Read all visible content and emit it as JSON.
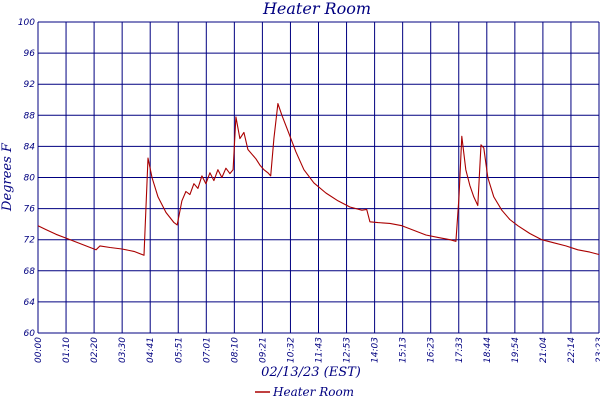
{
  "chart_data": {
    "type": "line",
    "title": "Heater Room",
    "xlabel": "02/13/23 (EST)",
    "ylabel": "Degrees F",
    "ylim": [
      60,
      100
    ],
    "yticks": [
      60,
      64,
      68,
      72,
      76,
      80,
      84,
      88,
      92,
      96,
      100
    ],
    "xticks": [
      "00:00",
      "01:10",
      "02:20",
      "03:30",
      "04:41",
      "05:51",
      "07:01",
      "08:10",
      "09:21",
      "10:32",
      "11:43",
      "12:53",
      "14:03",
      "15:13",
      "16:23",
      "17:33",
      "18:44",
      "19:54",
      "21:04",
      "22:14",
      "23:23"
    ],
    "xlim": [
      "00:00",
      "23:23"
    ],
    "grid": true,
    "legend_position": "bottom-center",
    "series": [
      {
        "name": "Heater Room",
        "color": "#aa0000",
        "points": [
          [
            "00:00",
            73.8
          ],
          [
            "00:20",
            73.3
          ],
          [
            "00:45",
            72.7
          ],
          [
            "01:10",
            72.2
          ],
          [
            "01:35",
            71.7
          ],
          [
            "02:00",
            71.2
          ],
          [
            "02:25",
            70.7
          ],
          [
            "02:35",
            71.2
          ],
          [
            "03:00",
            71.0
          ],
          [
            "03:30",
            70.8
          ],
          [
            "04:00",
            70.5
          ],
          [
            "04:25",
            70.0
          ],
          [
            "04:35",
            82.5
          ],
          [
            "04:45",
            80.0
          ],
          [
            "05:00",
            77.5
          ],
          [
            "05:20",
            75.5
          ],
          [
            "05:40",
            74.2
          ],
          [
            "05:48",
            73.9
          ],
          [
            "06:00",
            77.0
          ],
          [
            "06:10",
            78.2
          ],
          [
            "06:20",
            77.8
          ],
          [
            "06:30",
            79.2
          ],
          [
            "06:40",
            78.6
          ],
          [
            "06:50",
            80.2
          ],
          [
            "07:00",
            79.2
          ],
          [
            "07:10",
            80.6
          ],
          [
            "07:20",
            79.6
          ],
          [
            "07:30",
            81.0
          ],
          [
            "07:40",
            80.0
          ],
          [
            "07:50",
            81.2
          ],
          [
            "08:00",
            80.5
          ],
          [
            "08:08",
            81.0
          ],
          [
            "08:15",
            87.8
          ],
          [
            "08:25",
            85.0
          ],
          [
            "08:35",
            85.8
          ],
          [
            "08:45",
            83.6
          ],
          [
            "08:55",
            83.0
          ],
          [
            "09:05",
            82.4
          ],
          [
            "09:15",
            81.6
          ],
          [
            "09:25",
            81.0
          ],
          [
            "09:35",
            80.6
          ],
          [
            "09:42",
            80.2
          ],
          [
            "09:50",
            85.0
          ],
          [
            "10:00",
            89.5
          ],
          [
            "10:10",
            88.0
          ],
          [
            "10:25",
            86.0
          ],
          [
            "10:45",
            83.3
          ],
          [
            "11:05",
            81.0
          ],
          [
            "11:30",
            79.3
          ],
          [
            "12:00",
            78.0
          ],
          [
            "12:30",
            77.0
          ],
          [
            "13:00",
            76.2
          ],
          [
            "13:30",
            75.8
          ],
          [
            "13:42",
            75.9
          ],
          [
            "13:50",
            74.3
          ],
          [
            "14:10",
            74.2
          ],
          [
            "14:40",
            74.1
          ],
          [
            "15:10",
            73.8
          ],
          [
            "15:40",
            73.2
          ],
          [
            "16:10",
            72.6
          ],
          [
            "16:40",
            72.3
          ],
          [
            "17:10",
            72.0
          ],
          [
            "17:25",
            71.8
          ],
          [
            "17:33",
            77.5
          ],
          [
            "17:40",
            85.3
          ],
          [
            "17:50",
            81.0
          ],
          [
            "18:00",
            79.0
          ],
          [
            "18:10",
            77.5
          ],
          [
            "18:20",
            76.4
          ],
          [
            "18:28",
            84.2
          ],
          [
            "18:35",
            83.8
          ],
          [
            "18:45",
            80.0
          ],
          [
            "19:00",
            77.5
          ],
          [
            "19:20",
            75.8
          ],
          [
            "19:40",
            74.6
          ],
          [
            "20:00",
            73.8
          ],
          [
            "20:30",
            72.8
          ],
          [
            "21:00",
            72.0
          ],
          [
            "21:30",
            71.6
          ],
          [
            "22:00",
            71.2
          ],
          [
            "22:30",
            70.7
          ],
          [
            "23:00",
            70.4
          ],
          [
            "23:23",
            70.1
          ]
        ]
      }
    ]
  }
}
